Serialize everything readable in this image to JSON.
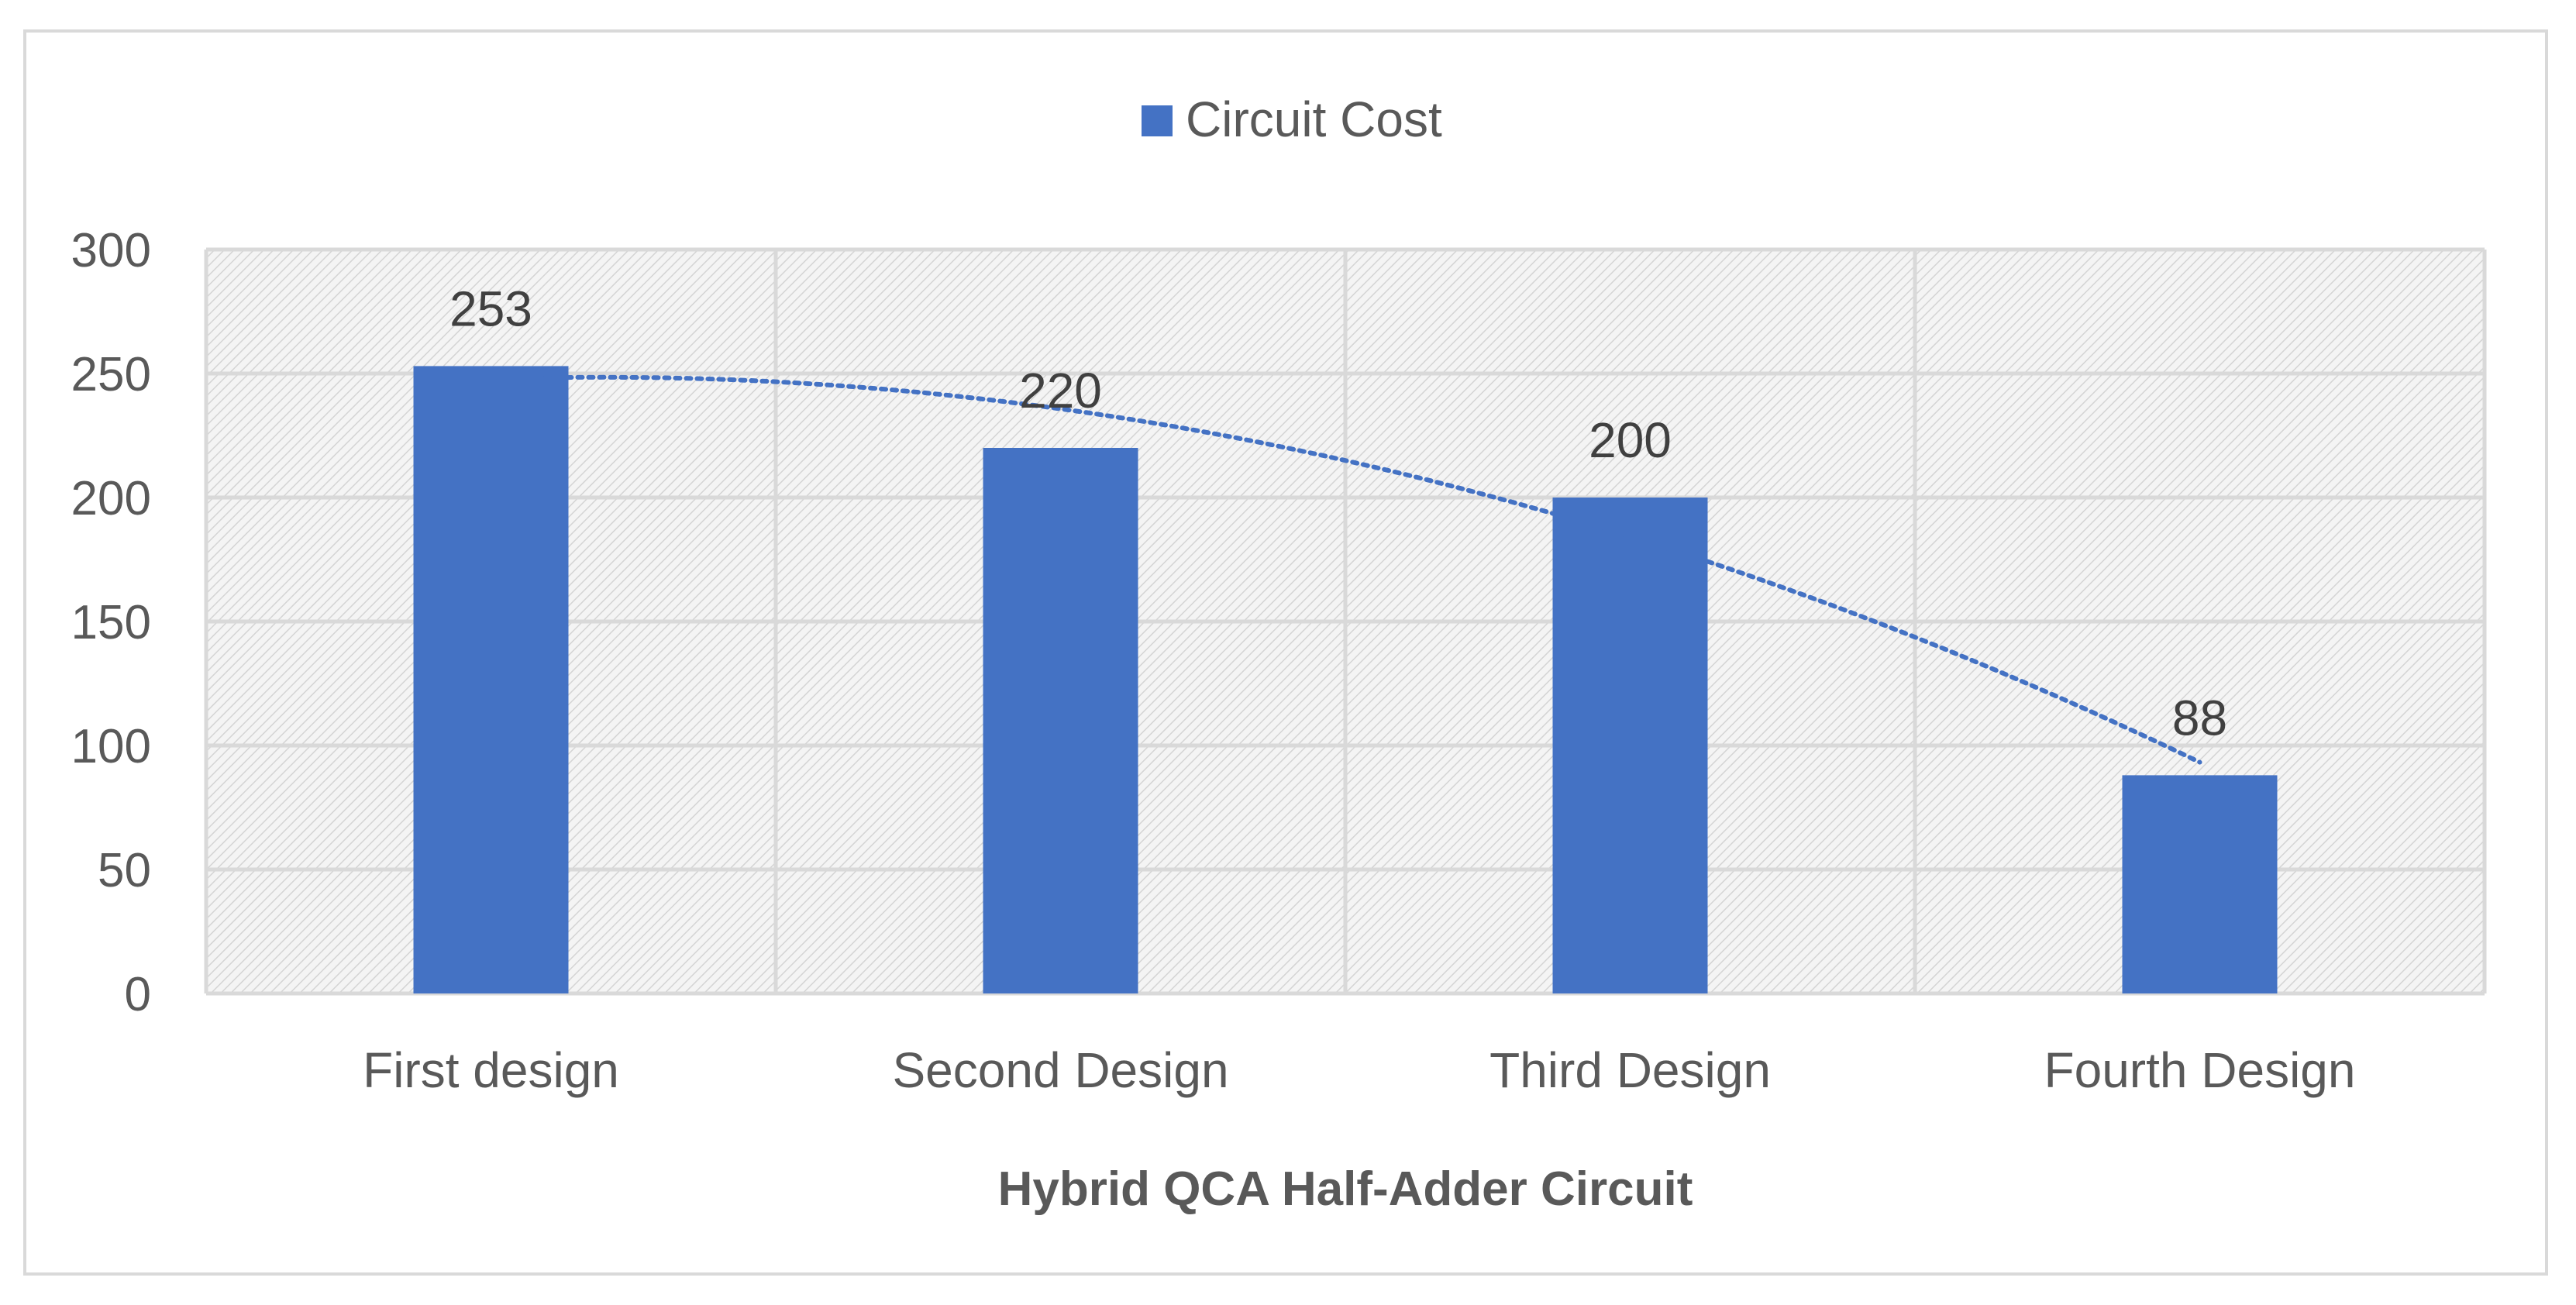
{
  "chart_data": {
    "type": "bar",
    "categories": [
      "First design",
      "Second Design",
      "Third Design",
      "Fourth Design"
    ],
    "series": [
      {
        "name": "Circuit Cost",
        "values": [
          253,
          220,
          200,
          88
        ],
        "color": "#4472c4"
      }
    ],
    "data_labels": [
      "253",
      "220",
      "200",
      "88"
    ],
    "trendline": {
      "type": "polynomial",
      "style": "dotted",
      "color": "#4472c4"
    },
    "title": "",
    "xlabel": "Hybrid QCA Half-Adder Circuit",
    "ylabel": "",
    "ylim": [
      0,
      300
    ],
    "yticks": [
      0,
      50,
      100,
      150,
      200,
      250,
      300
    ],
    "grid": true,
    "plot_background": "hatched light gray",
    "legend_position": "top"
  }
}
